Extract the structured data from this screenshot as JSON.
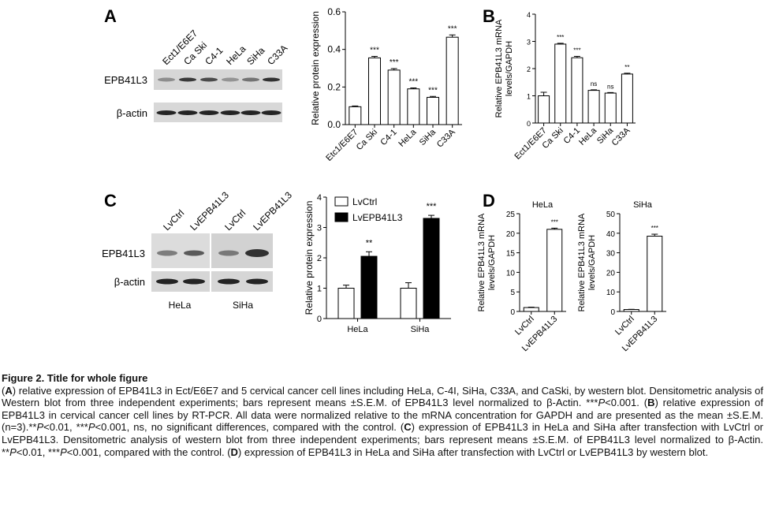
{
  "panels": {
    "A": {
      "letter": "A",
      "blot": {
        "lanes": [
          "Ect1/E6E7",
          "Ca Ski",
          "C4-1",
          "HeLa",
          "SiHa",
          "C33A"
        ],
        "rows": [
          "EPB41L3",
          "β-actin"
        ],
        "target_intensity": [
          0.2,
          0.85,
          0.7,
          0.15,
          0.4,
          0.9
        ],
        "actin_intensity": [
          1,
          1,
          1,
          1,
          1,
          1
        ]
      },
      "chart": {
        "ylabel": "Relative protein expression"
      }
    },
    "B": {
      "letter": "B",
      "chart": {
        "ylabel": [
          "Relative EPB41L3 mRNA",
          "levels/GAPDH"
        ]
      }
    },
    "C": {
      "letter": "C",
      "blot": {
        "lanes": [
          "LvCtrl",
          "LvEPB41L3",
          "LvCtrl",
          "LvEPB41L3"
        ],
        "rows": [
          "EPB41L3",
          "β-actin"
        ],
        "groups": [
          "HeLa",
          "SiHa"
        ],
        "target_intensity": [
          0.35,
          0.6,
          0.35,
          0.9
        ],
        "actin_intensity": [
          1,
          1,
          1,
          1
        ]
      },
      "chart": {
        "ylabel": "Relative protein expression"
      }
    },
    "D": {
      "letter": "D",
      "left": {
        "title": "HeLa",
        "ylabel": [
          "Relative EPB41L3 mRNA",
          "levels/GAPDH"
        ]
      },
      "right": {
        "title": "SiHa",
        "ylabel": [
          "Relative EPB41L3 mRNA",
          "levels/GAPDH"
        ]
      }
    }
  },
  "chart_data": [
    {
      "id": "A",
      "type": "bar",
      "categories": [
        "Etc1/E6E7",
        "Ca Ski",
        "C4-1",
        "HeLa",
        "SiHa",
        "C33A"
      ],
      "values": [
        0.095,
        0.355,
        0.29,
        0.19,
        0.145,
        0.465
      ],
      "errors": [
        0.004,
        0.008,
        0.008,
        0.005,
        0.005,
        0.012
      ],
      "sig": [
        "",
        "***",
        "***",
        "***",
        "***",
        "***"
      ],
      "ylim": [
        0,
        0.6
      ],
      "yticks": [
        "0.0",
        "0.2",
        "0.4",
        "0.6"
      ],
      "ylabel": "Relative protein expression"
    },
    {
      "id": "B",
      "type": "bar",
      "categories": [
        "Ect1/E6E7",
        "Ca Ski",
        "C4-1",
        "HeLa",
        "SiHa",
        "C33A"
      ],
      "values": [
        1.0,
        2.9,
        2.4,
        1.2,
        1.1,
        1.8
      ],
      "errors": [
        0.13,
        0.03,
        0.05,
        0.02,
        0.02,
        0.03
      ],
      "sig": [
        "",
        "***",
        "***",
        "ns",
        "ns",
        "**"
      ],
      "ylim": [
        0,
        4
      ],
      "yticks": [
        "0",
        "1",
        "2",
        "3",
        "4"
      ],
      "ylabel": "Relative EPB41L3 mRNA levels/GAPDH"
    },
    {
      "id": "C",
      "type": "bar",
      "categories": [
        "HeLa",
        "SiHa"
      ],
      "series": [
        {
          "name": "LvCtrl",
          "values": [
            1.0,
            1.0
          ],
          "errors": [
            0.1,
            0.18
          ],
          "color": "#ffffff"
        },
        {
          "name": "LvEPB41L3",
          "values": [
            2.05,
            3.3
          ],
          "errors": [
            0.15,
            0.1
          ],
          "color": "#000000"
        }
      ],
      "sig": [
        "**",
        "***"
      ],
      "ylim": [
        0,
        4
      ],
      "yticks": [
        "0",
        "1",
        "2",
        "3",
        "4"
      ],
      "ylabel": "Relative protein expression",
      "legend": "top-left"
    },
    {
      "id": "D-HeLa",
      "type": "bar",
      "title": "HeLa",
      "categories": [
        "LvCtrl",
        "LvEPB41L3"
      ],
      "values": [
        1.0,
        21.0
      ],
      "errors": [
        0.1,
        0.3
      ],
      "sig": [
        "",
        "***"
      ],
      "ylim": [
        0,
        25
      ],
      "yticks": [
        "0",
        "5",
        "10",
        "15",
        "20",
        "25"
      ],
      "ylabel": "Relative EPB41L3 mRNA levels/GAPDH"
    },
    {
      "id": "D-SiHa",
      "type": "bar",
      "title": "SiHa",
      "categories": [
        "LvCtrl",
        "LvEPB41L3"
      ],
      "values": [
        1.0,
        38.5
      ],
      "errors": [
        0.1,
        1.0
      ],
      "sig": [
        "",
        "***"
      ],
      "ylim": [
        0,
        50
      ],
      "yticks": [
        "0",
        "10",
        "20",
        "30",
        "40",
        "50"
      ],
      "ylabel": "Relative EPB41L3 mRNA levels/GAPDH"
    }
  ],
  "caption": {
    "title": "Figure 2. Title for whole figure",
    "segments": [
      {
        "t": "("
      },
      {
        "t": "A",
        "b": 1
      },
      {
        "t": ") relative expression of EPB41L3 in Ect/E6E7 and 5 cervical cancer cell lines including HeLa, C-4I, SiHa, C33A, and CaSki, by western blot. Densitometric analysis of Western blot from three independent experiments; bars represent means ±S.E.M. of EPB41L3 level normalized to β-Actin. ***"
      },
      {
        "t": "P",
        "i": 1
      },
      {
        "t": "<0.001. ("
      },
      {
        "t": "B",
        "b": 1
      },
      {
        "t": ") relative expression of EPB41L3 in cervical cancer cell lines by RT-PCR. All data were normalized relative to the mRNA concentration for GAPDH and are presented as the mean ±S.E.M. (n=3).**"
      },
      {
        "t": "P",
        "i": 1
      },
      {
        "t": "<0.01, ***"
      },
      {
        "t": "P",
        "i": 1
      },
      {
        "t": "<0.001, ns, no significant differences, compared with the control. ("
      },
      {
        "t": "C",
        "b": 1
      },
      {
        "t": ") expression of EPB41L3 in HeLa and SiHa after transfection with LvCtrl or LvEPB41L3. Densitometric analysis of western blot from three independent experiments; bars represent means ±S.E.M. of EPB41L3 level normalized to β-Actin. **"
      },
      {
        "t": "P",
        "i": 1
      },
      {
        "t": "<0.01, ***"
      },
      {
        "t": "P",
        "i": 1
      },
      {
        "t": "<0.001, compared with the control. ("
      },
      {
        "t": "D",
        "b": 1
      },
      {
        "t": ") expression of EPB41L3 in HeLa and SiHa after transfection with LvCtrl or LvEPB41L3 by western blot."
      }
    ]
  }
}
